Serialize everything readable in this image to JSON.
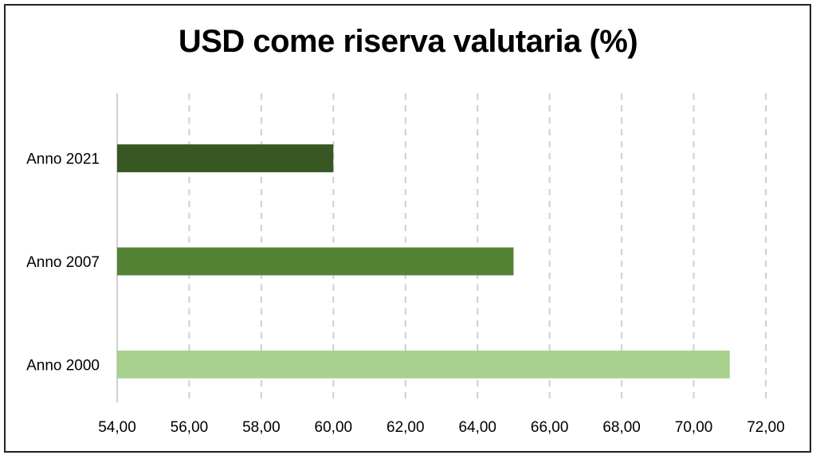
{
  "chart_data": {
    "type": "bar",
    "orientation": "horizontal",
    "title": "USD come riserva valutaria (%)",
    "categories": [
      "Anno 2021",
      "Anno 2007",
      "Anno 2000"
    ],
    "values": [
      60.0,
      65.0,
      71.0
    ],
    "colors": [
      "#385723",
      "#548235",
      "#a9d18e"
    ],
    "xlim": [
      54,
      72
    ],
    "xticks": [
      54,
      56,
      58,
      60,
      62,
      64,
      66,
      68,
      70,
      72
    ],
    "xtick_labels": [
      "54,00",
      "56,00",
      "58,00",
      "60,00",
      "62,00",
      "64,00",
      "66,00",
      "68,00",
      "70,00",
      "72,00"
    ],
    "grid": "vertical-dashed",
    "xlabel": "",
    "ylabel": ""
  }
}
